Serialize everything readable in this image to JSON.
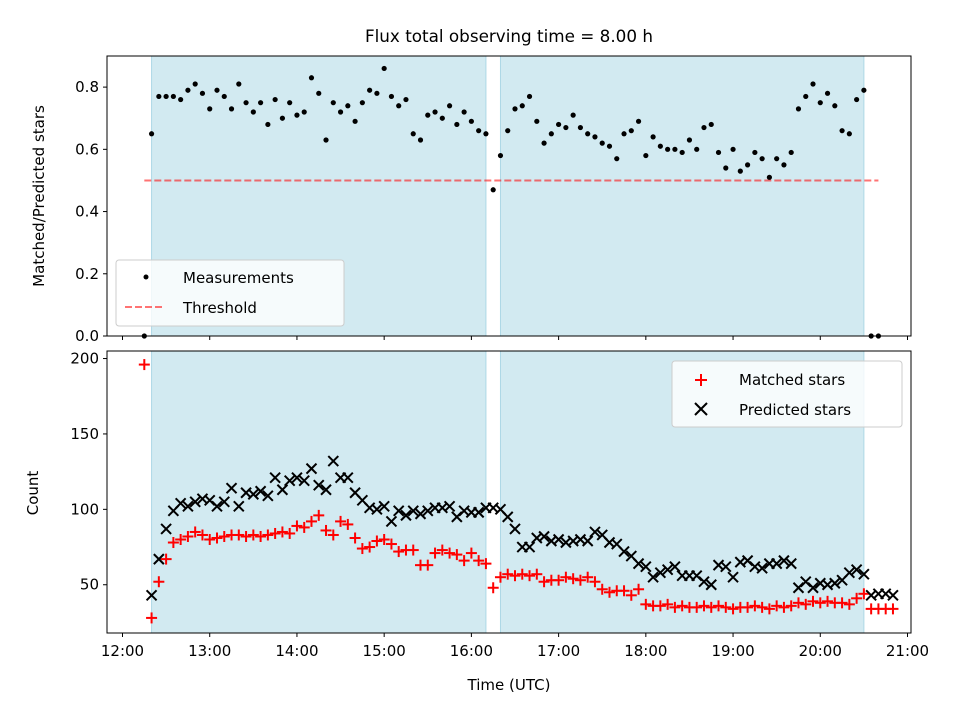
{
  "title": "Flux total observing time = 8.00 h",
  "colors": {
    "shade": "#add8e6",
    "threshold": "#ff0000",
    "matched": "#ff0000",
    "predicted": "#000000",
    "points": "#000000"
  },
  "chart_data": [
    {
      "type": "scatter",
      "panel": "top",
      "xlabel": "",
      "ylabel": "Matched/Predicted stars",
      "xlim": [
        "12:00",
        "21:00"
      ],
      "ylim": [
        0,
        0.9
      ],
      "yticks": [
        "0.0",
        "0.2",
        "0.4",
        "0.6",
        "0.8"
      ],
      "shaded_intervals": [
        [
          "12:20",
          "16:10"
        ],
        [
          "16:20",
          "20:30"
        ]
      ],
      "legend": {
        "location": "lower-left",
        "entries": [
          "Measurements",
          "Threshold"
        ]
      },
      "threshold": {
        "name": "Threshold",
        "value": 0.5,
        "x_range": [
          "12:15",
          "20:40"
        ]
      },
      "series": [
        {
          "name": "Measurements",
          "x_minutes_after_noon": [
            15,
            20,
            25,
            30,
            35,
            40,
            45,
            50,
            55,
            60,
            65,
            70,
            75,
            80,
            85,
            90,
            95,
            100,
            105,
            110,
            115,
            120,
            125,
            130,
            135,
            140,
            145,
            150,
            155,
            160,
            165,
            170,
            175,
            180,
            185,
            190,
            195,
            200,
            205,
            210,
            215,
            220,
            225,
            230,
            235,
            240,
            245,
            250,
            255,
            260,
            265,
            270,
            275,
            280,
            285,
            290,
            295,
            300,
            305,
            310,
            315,
            320,
            325,
            330,
            335,
            340,
            345,
            350,
            355,
            360,
            365,
            370,
            375,
            380,
            385,
            390,
            395,
            400,
            405,
            410,
            415,
            420,
            425,
            430,
            435,
            440,
            445,
            450,
            455,
            460,
            465,
            470,
            475,
            480,
            485,
            490,
            495,
            500,
            505,
            510,
            515,
            520,
            525,
            530
          ],
          "values": [
            0.0,
            0.65,
            0.77,
            0.77,
            0.77,
            0.76,
            0.79,
            0.81,
            0.78,
            0.73,
            0.79,
            0.77,
            0.73,
            0.81,
            0.75,
            0.72,
            0.75,
            0.68,
            0.76,
            0.7,
            0.75,
            0.71,
            0.72,
            0.83,
            0.78,
            0.63,
            0.75,
            0.72,
            0.74,
            0.69,
            0.75,
            0.79,
            0.78,
            0.86,
            0.77,
            0.74,
            0.76,
            0.65,
            0.63,
            0.71,
            0.72,
            0.7,
            0.74,
            0.68,
            0.72,
            0.69,
            0.66,
            0.65,
            0.47,
            0.58,
            0.66,
            0.73,
            0.74,
            0.77,
            0.69,
            0.62,
            0.65,
            0.68,
            0.67,
            0.71,
            0.67,
            0.65,
            0.64,
            0.62,
            0.61,
            0.57,
            0.65,
            0.66,
            0.69,
            0.58,
            0.64,
            0.61,
            0.6,
            0.6,
            0.59,
            0.63,
            0.6,
            0.67,
            0.68,
            0.59,
            0.54,
            0.6,
            0.53,
            0.55,
            0.59,
            0.57,
            0.51,
            0.57,
            0.55,
            0.59,
            0.73,
            0.77,
            0.81,
            0.75,
            0.78,
            0.74,
            0.66,
            0.65,
            0.76,
            0.79,
            0.0,
            0.0
          ]
        }
      ]
    },
    {
      "type": "scatter",
      "panel": "bottom",
      "xlabel": "Time (UTC)",
      "ylabel": "Count",
      "xlim": [
        "12:00",
        "21:00"
      ],
      "ylim": [
        18,
        205
      ],
      "yticks": [
        "50",
        "100",
        "150",
        "200"
      ],
      "xticks": [
        "12:00",
        "13:00",
        "14:00",
        "15:00",
        "16:00",
        "17:00",
        "18:00",
        "19:00",
        "20:00",
        "21:00"
      ],
      "shaded_intervals": [
        [
          "12:20",
          "16:10"
        ],
        [
          "16:20",
          "20:30"
        ]
      ],
      "legend": {
        "location": "upper-right",
        "entries": [
          "Matched stars",
          "Predicted stars"
        ]
      },
      "series": [
        {
          "name": "Matched stars",
          "marker": "+",
          "x_minutes_after_noon": [
            15,
            20,
            25,
            30,
            35,
            40,
            45,
            50,
            55,
            60,
            65,
            70,
            75,
            80,
            85,
            90,
            95,
            100,
            105,
            110,
            115,
            120,
            125,
            130,
            135,
            140,
            145,
            150,
            155,
            160,
            165,
            170,
            175,
            180,
            185,
            190,
            195,
            200,
            205,
            210,
            215,
            220,
            225,
            230,
            235,
            240,
            245,
            250,
            255,
            260,
            265,
            270,
            275,
            280,
            285,
            290,
            295,
            300,
            305,
            310,
            315,
            320,
            325,
            330,
            335,
            340,
            345,
            350,
            355,
            360,
            365,
            370,
            375,
            380,
            385,
            390,
            395,
            400,
            405,
            410,
            415,
            420,
            425,
            430,
            435,
            440,
            445,
            450,
            455,
            460,
            465,
            470,
            475,
            480,
            485,
            490,
            495,
            500,
            505,
            510,
            515,
            520,
            525,
            530
          ],
          "values": [
            196,
            28,
            52,
            67,
            78,
            80,
            82,
            85,
            83,
            80,
            81,
            82,
            83,
            83,
            82,
            83,
            82,
            83,
            84,
            85,
            84,
            89,
            88,
            92,
            96,
            86,
            83,
            92,
            90,
            81,
            74,
            75,
            79,
            80,
            77,
            72,
            73,
            73,
            63,
            63,
            71,
            73,
            71,
            70,
            66,
            71,
            66,
            64,
            48,
            55,
            57,
            56,
            57,
            56,
            57,
            52,
            53,
            53,
            55,
            54,
            53,
            55,
            52,
            47,
            45,
            46,
            46,
            43,
            47,
            37,
            36,
            36,
            37,
            35,
            36,
            35,
            35,
            36,
            35,
            36,
            35,
            34,
            35,
            35,
            36,
            35,
            34,
            36,
            35,
            36,
            38,
            37,
            39,
            38,
            39,
            38,
            38,
            37,
            41,
            44,
            34,
            34,
            34,
            34
          ]
        },
        {
          "name": "Predicted stars",
          "marker": "x",
          "x_minutes_after_noon": [
            20,
            25,
            30,
            35,
            40,
            45,
            50,
            55,
            60,
            65,
            70,
            75,
            80,
            85,
            90,
            95,
            100,
            105,
            110,
            115,
            120,
            125,
            130,
            135,
            140,
            145,
            150,
            155,
            160,
            165,
            170,
            175,
            180,
            185,
            190,
            195,
            200,
            205,
            210,
            215,
            220,
            225,
            230,
            235,
            240,
            245,
            250,
            255,
            260,
            265,
            270,
            275,
            280,
            285,
            290,
            295,
            300,
            305,
            310,
            315,
            320,
            325,
            330,
            335,
            340,
            345,
            350,
            355,
            360,
            365,
            370,
            375,
            380,
            385,
            390,
            395,
            400,
            405,
            410,
            415,
            420,
            425,
            430,
            435,
            440,
            445,
            450,
            455,
            460,
            465,
            470,
            475,
            480,
            485,
            490,
            495,
            500,
            505,
            510,
            515,
            520,
            525,
            530
          ],
          "values": [
            43,
            67,
            87,
            99,
            104,
            102,
            105,
            107,
            106,
            102,
            105,
            114,
            102,
            111,
            110,
            112,
            109,
            121,
            113,
            119,
            121,
            119,
            127,
            116,
            113,
            132,
            121,
            121,
            111,
            106,
            101,
            100,
            102,
            92,
            99,
            96,
            99,
            97,
            99,
            101,
            101,
            102,
            95,
            99,
            98,
            98,
            101,
            101,
            100,
            95,
            87,
            75,
            75,
            81,
            82,
            79,
            80,
            78,
            79,
            80,
            79,
            85,
            83,
            78,
            77,
            72,
            69,
            64,
            62,
            55,
            58,
            60,
            62,
            56,
            56,
            56,
            52,
            50,
            63,
            62,
            55,
            65,
            66,
            62,
            61,
            64,
            64,
            66,
            64,
            48,
            52,
            48,
            51,
            50,
            51,
            53,
            58,
            60,
            57,
            43,
            44,
            44,
            43
          ]
        }
      ]
    }
  ]
}
